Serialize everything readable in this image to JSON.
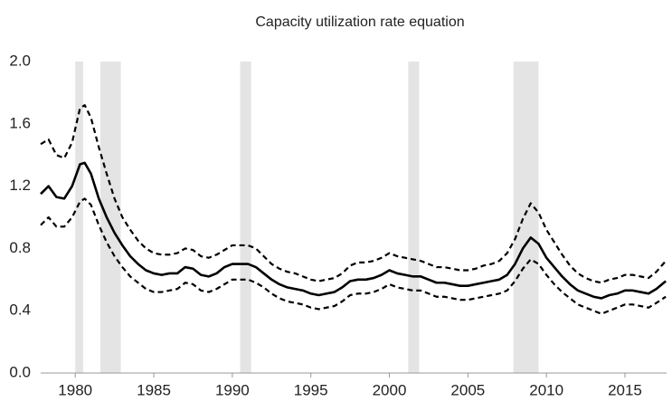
{
  "chart_data": {
    "type": "line",
    "title": "Capacity utilization rate equation",
    "x": [
      1977.8,
      1978.3,
      1978.8,
      1979.3,
      1979.8,
      1980.3,
      1980.6,
      1981.0,
      1981.5,
      1982.0,
      1982.5,
      1983.0,
      1983.5,
      1984.0,
      1984.5,
      1985.0,
      1985.5,
      1986.0,
      1986.5,
      1987.0,
      1987.5,
      1988.0,
      1988.5,
      1989.0,
      1989.5,
      1990.0,
      1990.5,
      1991.0,
      1991.5,
      1992.0,
      1992.5,
      1993.0,
      1993.5,
      1994.0,
      1994.5,
      1995.0,
      1995.5,
      1996.0,
      1996.5,
      1997.0,
      1997.5,
      1998.0,
      1998.5,
      1999.0,
      1999.5,
      2000.0,
      2000.5,
      2001.0,
      2001.5,
      2002.0,
      2002.5,
      2003.0,
      2003.5,
      2004.0,
      2004.5,
      2005.0,
      2005.5,
      2006.0,
      2006.5,
      2007.0,
      2007.5,
      2008.0,
      2008.5,
      2009.0,
      2009.5,
      2010.0,
      2010.5,
      2011.0,
      2011.5,
      2012.0,
      2012.5,
      2013.0,
      2013.5,
      2014.0,
      2014.5,
      2015.0,
      2015.5,
      2016.0,
      2016.5,
      2017.0,
      2017.6
    ],
    "series": [
      {
        "color": "#000000",
        "style": "solid",
        "values": [
          1.15,
          1.2,
          1.13,
          1.12,
          1.2,
          1.34,
          1.35,
          1.28,
          1.12,
          1.0,
          0.9,
          0.82,
          0.75,
          0.7,
          0.66,
          0.64,
          0.63,
          0.64,
          0.64,
          0.68,
          0.67,
          0.63,
          0.62,
          0.64,
          0.68,
          0.7,
          0.7,
          0.7,
          0.68,
          0.64,
          0.6,
          0.57,
          0.55,
          0.54,
          0.53,
          0.51,
          0.5,
          0.51,
          0.52,
          0.55,
          0.59,
          0.6,
          0.6,
          0.61,
          0.63,
          0.66,
          0.64,
          0.63,
          0.62,
          0.62,
          0.6,
          0.58,
          0.58,
          0.57,
          0.56,
          0.56,
          0.57,
          0.58,
          0.59,
          0.6,
          0.63,
          0.7,
          0.8,
          0.87,
          0.83,
          0.74,
          0.68,
          0.62,
          0.57,
          0.53,
          0.51,
          0.49,
          0.48,
          0.5,
          0.51,
          0.53,
          0.53,
          0.52,
          0.51,
          0.54,
          0.59
        ]
      },
      {
        "color": "#000000",
        "style": "dashed",
        "values": [
          1.47,
          1.5,
          1.4,
          1.38,
          1.48,
          1.7,
          1.72,
          1.64,
          1.45,
          1.28,
          1.12,
          1.0,
          0.92,
          0.85,
          0.8,
          0.77,
          0.76,
          0.76,
          0.77,
          0.8,
          0.79,
          0.75,
          0.74,
          0.76,
          0.79,
          0.82,
          0.82,
          0.82,
          0.8,
          0.75,
          0.7,
          0.67,
          0.65,
          0.64,
          0.62,
          0.6,
          0.59,
          0.6,
          0.61,
          0.64,
          0.69,
          0.71,
          0.71,
          0.72,
          0.74,
          0.77,
          0.75,
          0.74,
          0.73,
          0.72,
          0.7,
          0.68,
          0.68,
          0.67,
          0.66,
          0.66,
          0.67,
          0.69,
          0.7,
          0.72,
          0.77,
          0.86,
          0.99,
          1.09,
          1.03,
          0.92,
          0.84,
          0.76,
          0.69,
          0.64,
          0.61,
          0.59,
          0.58,
          0.6,
          0.61,
          0.63,
          0.63,
          0.62,
          0.61,
          0.65,
          0.72
        ]
      },
      {
        "color": "#000000",
        "style": "dashed",
        "values": [
          0.95,
          1.0,
          0.94,
          0.94,
          1.0,
          1.1,
          1.12,
          1.08,
          0.95,
          0.84,
          0.75,
          0.68,
          0.62,
          0.58,
          0.54,
          0.52,
          0.52,
          0.53,
          0.54,
          0.58,
          0.57,
          0.53,
          0.52,
          0.54,
          0.57,
          0.6,
          0.6,
          0.6,
          0.58,
          0.55,
          0.51,
          0.48,
          0.46,
          0.45,
          0.44,
          0.42,
          0.41,
          0.42,
          0.43,
          0.46,
          0.5,
          0.51,
          0.51,
          0.52,
          0.54,
          0.57,
          0.55,
          0.54,
          0.53,
          0.53,
          0.51,
          0.49,
          0.49,
          0.48,
          0.47,
          0.47,
          0.48,
          0.49,
          0.5,
          0.51,
          0.53,
          0.59,
          0.67,
          0.73,
          0.7,
          0.63,
          0.57,
          0.52,
          0.48,
          0.44,
          0.42,
          0.4,
          0.38,
          0.4,
          0.42,
          0.44,
          0.44,
          0.43,
          0.42,
          0.45,
          0.49
        ]
      }
    ],
    "shaded_periods": [
      [
        1980.0,
        1980.5
      ],
      [
        1981.6,
        1982.9
      ],
      [
        1990.5,
        1991.2
      ],
      [
        2001.2,
        2001.9
      ],
      [
        2007.9,
        2009.5
      ]
    ],
    "shade_color": "#e4e4e4",
    "xlim": [
      1977.8,
      2017.65
    ],
    "xticks": [
      1980,
      1985,
      1990,
      1995,
      2000,
      2005,
      2010,
      2015
    ],
    "ylim": [
      0,
      2
    ],
    "yticks": [
      {
        "value": 0,
        "label": "0.0"
      },
      0.4,
      0.8,
      1.2,
      1.6,
      {
        "value": 2,
        "label": "2.0"
      }
    ],
    "grid": false
  }
}
